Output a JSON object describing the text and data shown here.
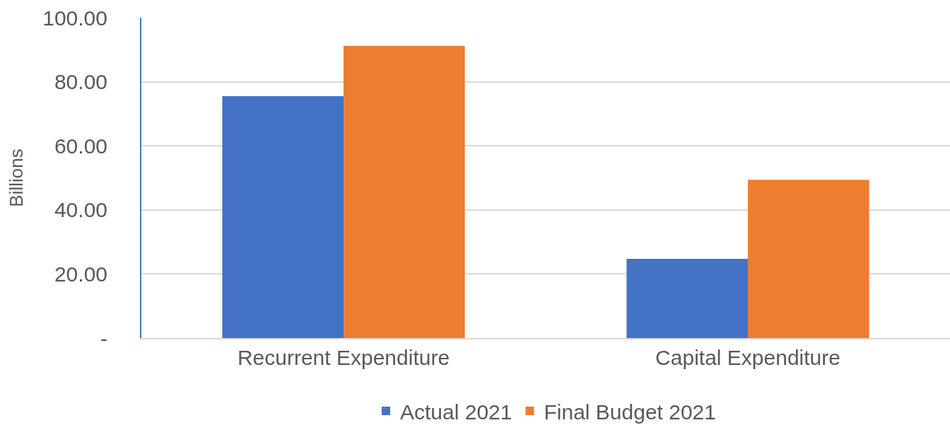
{
  "chart_data": {
    "type": "bar",
    "ylabel": "Billions",
    "categories": [
      "Recurrent Expenditure",
      "Capital Expenditure"
    ],
    "series": [
      {
        "name": "Actual 2021",
        "color": "#4472c4",
        "values": [
          75.5,
          24.7
        ]
      },
      {
        "name": "Final Budget 2021",
        "color": "#ed7d31",
        "values": [
          91.2,
          49.4
        ]
      }
    ],
    "ylim": [
      0,
      100
    ],
    "yticks": [
      {
        "value": 0,
        "label": "-"
      },
      {
        "value": 20,
        "label": "20.00"
      },
      {
        "value": 40,
        "label": "40.00"
      },
      {
        "value": 60,
        "label": "60.00"
      },
      {
        "value": 80,
        "label": "80.00"
      },
      {
        "value": 100,
        "label": "100.00"
      }
    ],
    "grid": "y",
    "legend": "bottom"
  }
}
